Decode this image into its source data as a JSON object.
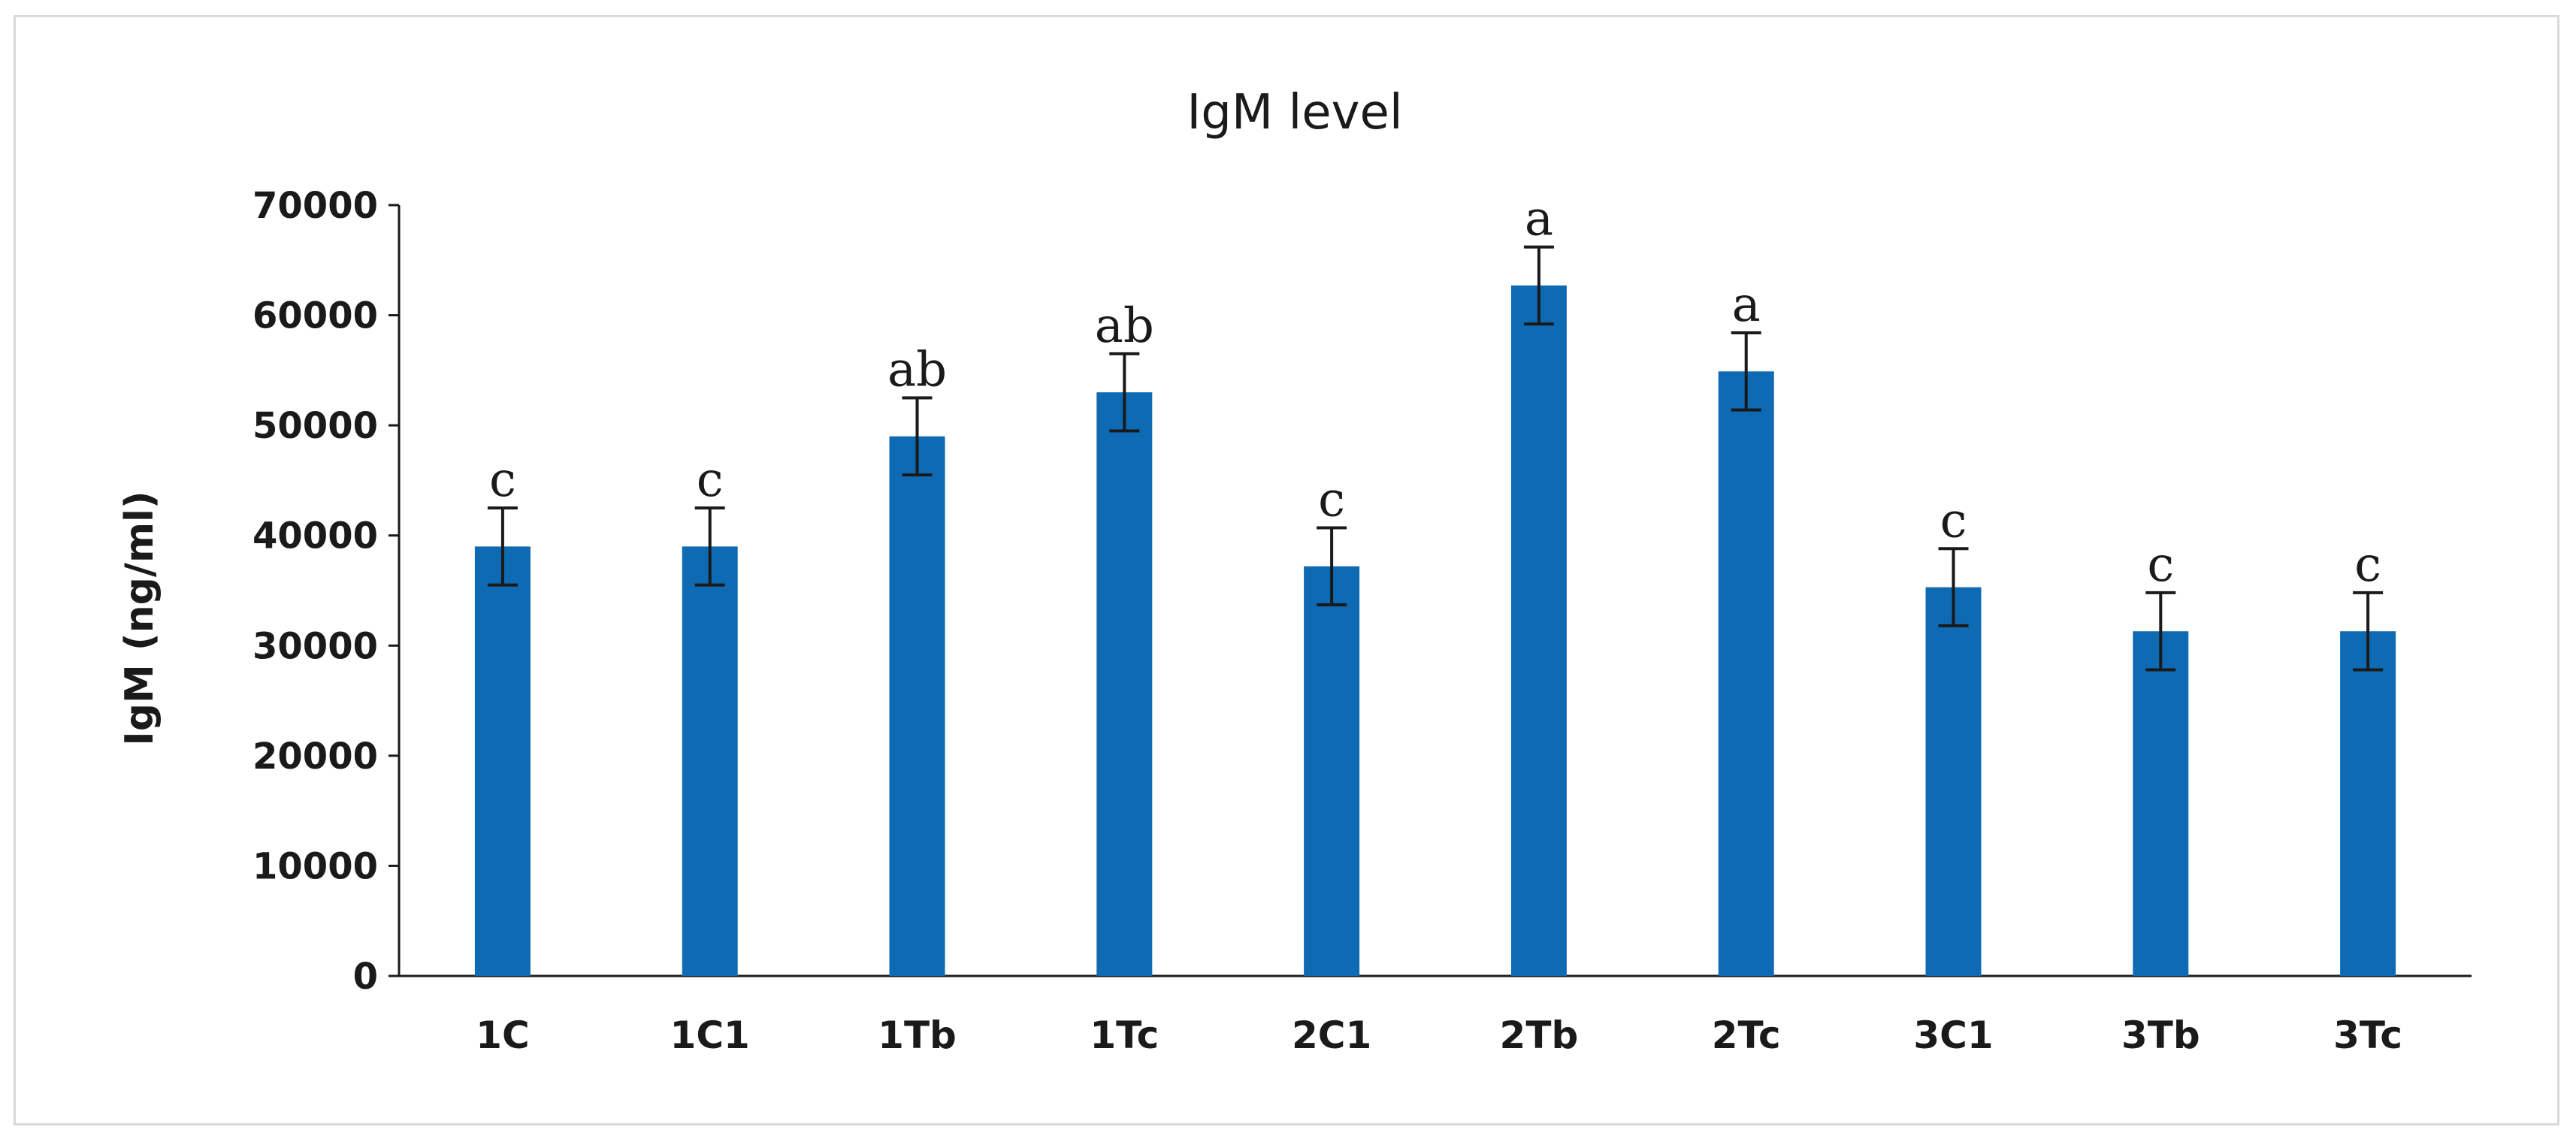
{
  "chart_data": {
    "type": "bar",
    "title": "IgM level",
    "ylabel": "IgM (ng/ml)",
    "xlabel": "",
    "ylim": [
      0,
      70000
    ],
    "yticks": [
      0,
      10000,
      20000,
      30000,
      40000,
      50000,
      60000,
      70000
    ],
    "categories": [
      "1C",
      "1C1",
      "1Tb",
      "1Tc",
      "2C1",
      "2Tb",
      "2Tc",
      "3C1",
      "3Tb",
      "3Tc"
    ],
    "values": [
      39000,
      39000,
      49000,
      53000,
      37200,
      62700,
      54900,
      35300,
      31300,
      31300
    ],
    "errors": [
      3500,
      3500,
      3500,
      3500,
      3500,
      3500,
      3500,
      3500,
      3500,
      3500
    ],
    "significance": [
      "c",
      "c",
      "ab",
      "ab",
      "c",
      "a",
      "a",
      "c",
      "c",
      "c"
    ],
    "bar_color": "#0f6ab4",
    "grid": false,
    "legend": "none"
  }
}
